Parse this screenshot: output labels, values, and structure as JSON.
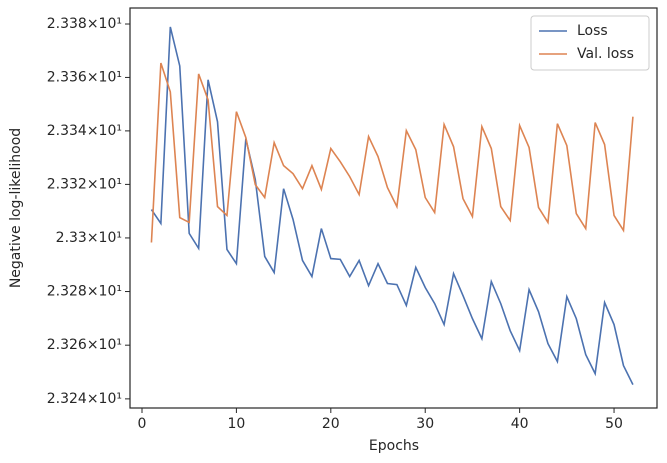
{
  "chart_data": {
    "type": "line",
    "xlabel": "Epochs",
    "ylabel": "Negative log-likelihood",
    "log_y": true,
    "legend": "upper right",
    "x": [
      1,
      2,
      3,
      4,
      5,
      6,
      7,
      8,
      9,
      10,
      11,
      12,
      13,
      14,
      15,
      16,
      17,
      18,
      19,
      20,
      21,
      22,
      23,
      24,
      25,
      26,
      27,
      28,
      29,
      30,
      31,
      32,
      33,
      34,
      35,
      36,
      37,
      38,
      39,
      40,
      41,
      42,
      43,
      44,
      45,
      46,
      47,
      48,
      49,
      50,
      51,
      52
    ],
    "series": [
      {
        "name": "Loss",
        "color": "#4c72b0",
        "values": [
          23.3106,
          23.3054,
          23.3789,
          23.3643,
          23.3017,
          23.2961,
          23.3591,
          23.3434,
          23.2957,
          23.2904,
          23.3371,
          23.3218,
          23.2931,
          23.2871,
          23.3184,
          23.3069,
          23.2916,
          23.2856,
          23.3035,
          23.2923,
          23.292,
          23.2856,
          23.2916,
          23.2822,
          23.2904,
          23.283,
          23.2826,
          23.2748,
          23.289,
          23.2815,
          23.2755,
          23.2677,
          23.2867,
          23.2785,
          23.2699,
          23.2624,
          23.2837,
          23.2755,
          23.2654,
          23.258,
          23.2807,
          23.2725,
          23.2606,
          23.2539,
          23.2781,
          23.2699,
          23.2565,
          23.2494,
          23.2759,
          23.2677,
          23.2524,
          23.2453
        ]
      },
      {
        "name": "Val. loss",
        "color": "#dd8452",
        "values": [
          23.2983,
          23.3654,
          23.3546,
          23.3076,
          23.3058,
          23.3613,
          23.3516,
          23.3117,
          23.3084,
          23.3472,
          23.3375,
          23.3199,
          23.3151,
          23.3356,
          23.327,
          23.324,
          23.3184,
          23.327,
          23.3181,
          23.3334,
          23.3285,
          23.3229,
          23.3162,
          23.3379,
          23.3304,
          23.3188,
          23.3117,
          23.3401,
          23.333,
          23.3151,
          23.3095,
          23.3424,
          23.3341,
          23.3147,
          23.308,
          23.3416,
          23.3334,
          23.3117,
          23.3065,
          23.342,
          23.3338,
          23.3114,
          23.3058,
          23.3427,
          23.3345,
          23.3091,
          23.3035,
          23.3431,
          23.3349,
          23.3084,
          23.3028,
          23.3453
        ]
      }
    ],
    "xlim": [
      -1.27,
      54.55
    ],
    "xticks": [
      0,
      10,
      20,
      30,
      40,
      50
    ],
    "ylim": [
      23.2366,
      23.386
    ],
    "yticks": [
      {
        "value": 23.24,
        "label": "2.324×10¹"
      },
      {
        "value": 23.26,
        "label": "2.326×10¹"
      },
      {
        "value": 23.28,
        "label": "2.328×10¹"
      },
      {
        "value": 23.3,
        "label": "2.33×10¹"
      },
      {
        "value": 23.32,
        "label": "2.332×10¹"
      },
      {
        "value": 23.34,
        "label": "2.334×10¹"
      },
      {
        "value": 23.36,
        "label": "2.336×10¹"
      },
      {
        "value": 23.38,
        "label": "2.338×10¹"
      }
    ]
  }
}
